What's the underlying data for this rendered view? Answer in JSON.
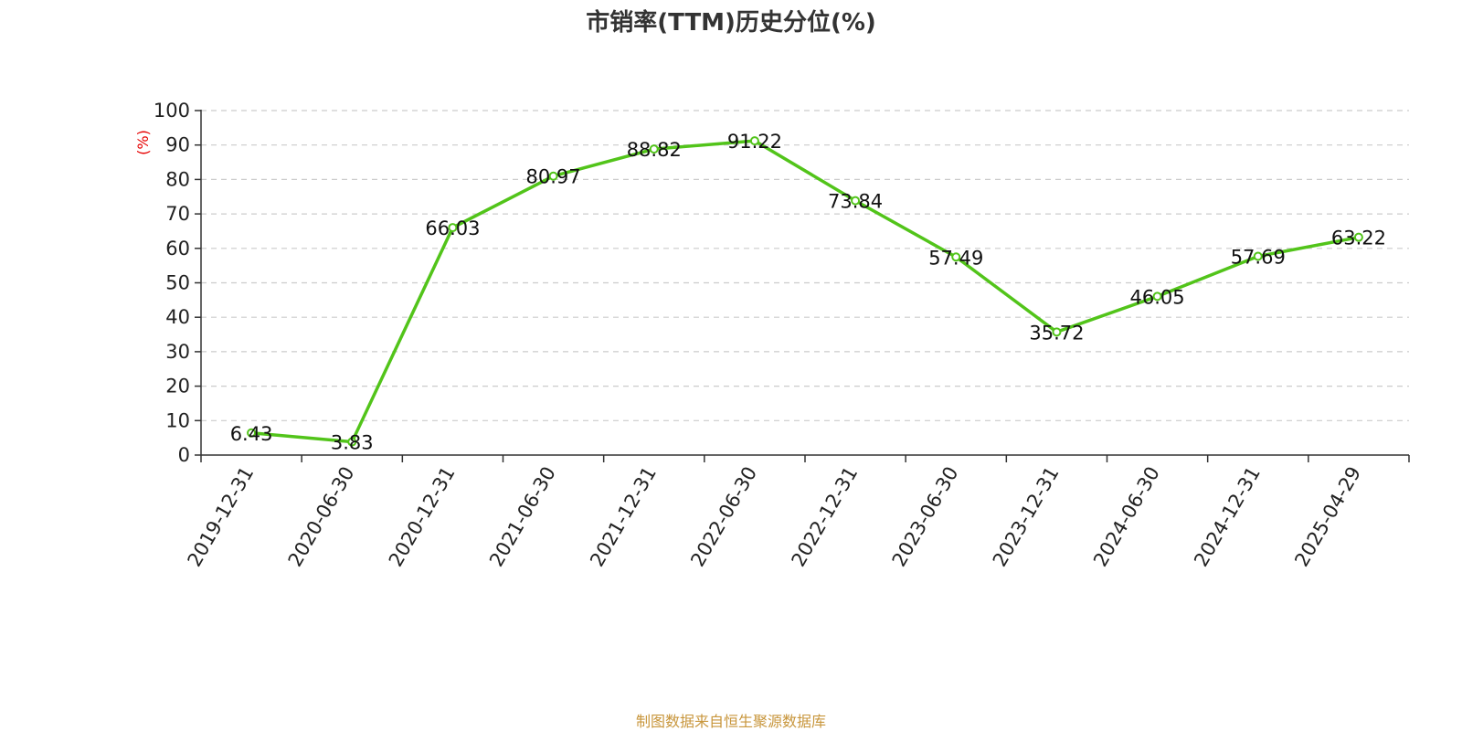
{
  "chart_data": {
    "type": "line",
    "title": "市销率(TTM)历史分位(%)",
    "ylabel": "(%)",
    "xlabel": "",
    "ylim": [
      0,
      100
    ],
    "yticks": [
      0,
      10,
      20,
      30,
      40,
      50,
      60,
      70,
      80,
      90,
      100
    ],
    "grid": true,
    "categories": [
      "2019-12-31",
      "2020-06-30",
      "2020-12-31",
      "2021-06-30",
      "2021-12-31",
      "2022-06-30",
      "2022-12-31",
      "2023-06-30",
      "2023-12-31",
      "2024-06-30",
      "2024-12-31",
      "2025-04-29"
    ],
    "series": [
      {
        "values": [
          6.43,
          3.83,
          66.03,
          80.97,
          88.82,
          91.22,
          73.84,
          57.49,
          35.72,
          46.05,
          57.69,
          63.22
        ],
        "labels": [
          "6.43",
          "3.83",
          "66.03",
          "80.97",
          "88.82",
          "91.22",
          "73.84",
          "57.49",
          "35.72",
          "46.05",
          "57.69",
          "63.22"
        ],
        "color": "#52c41a"
      }
    ],
    "colors": {
      "line": "#52c41a",
      "ylabel": "#e60000",
      "grid": "#cccccc",
      "axis": "#333333"
    }
  },
  "footer": {
    "source": "制图数据来自恒生聚源数据库",
    "color": "#c8963c"
  }
}
